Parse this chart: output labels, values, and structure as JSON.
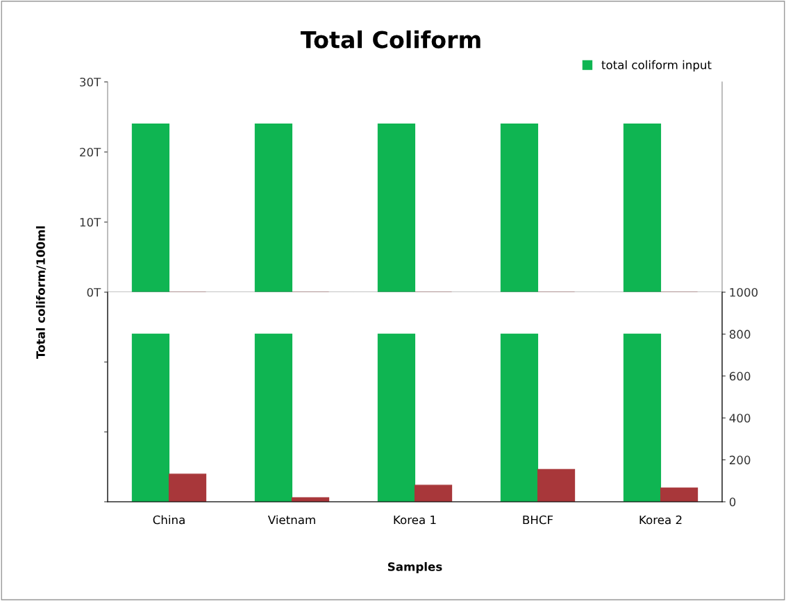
{
  "chart_data": [
    {
      "type": "bar",
      "title": "Total Coliform",
      "ylabel": "Total coliform/100ml",
      "categories": [
        null,
        null,
        null,
        null,
        null
      ],
      "series": [
        {
          "name": "total coliform input",
          "color": "#0fb552",
          "values": [
            24,
            24,
            24,
            24,
            24
          ]
        },
        {
          "color": "#a8373a",
          "values": [
            0,
            0,
            0,
            0,
            0
          ]
        }
      ],
      "ylim": [
        0,
        30
      ],
      "yticks": [
        {
          "value": 0,
          "label": "0T"
        },
        {
          "value": 10,
          "label": "10T"
        },
        {
          "value": 20,
          "label": "20T"
        },
        {
          "value": 30,
          "label": "30T"
        }
      ],
      "tick_labels": "y",
      "legend": "top right",
      "grid": false
    },
    {
      "type": "bar",
      "xlabel": "Samples",
      "categories": [
        "China",
        "Vietnam",
        "Korea 1",
        "BHCF",
        "Korea 2"
      ],
      "series": [
        {
          "color": "#0fb552",
          "values": [
            800,
            800,
            800,
            800,
            800
          ],
          "axis": "y2"
        },
        {
          "color": "#a8373a",
          "values": [
            132,
            20,
            79,
            155,
            66
          ],
          "axis": "y2"
        }
      ],
      "y2lim": [
        0,
        1000
      ],
      "y2ticks": [
        0,
        200,
        400,
        600,
        800,
        1000
      ],
      "grid": false
    }
  ]
}
